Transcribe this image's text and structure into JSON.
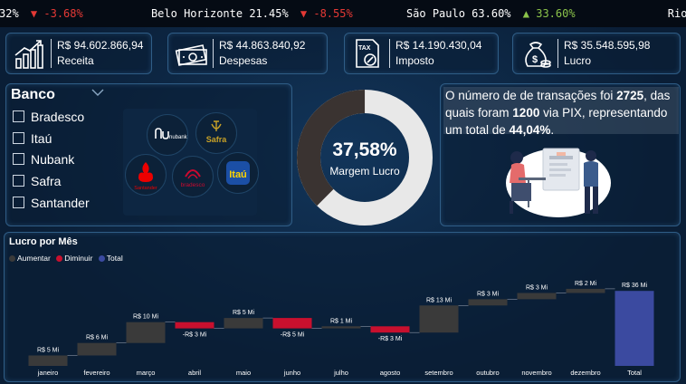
{
  "ticker": [
    {
      "text": "32%",
      "kind": "plain"
    },
    {
      "text": "▼ -3.68%",
      "kind": "down"
    },
    {
      "text": "Belo Horizonte 21.45%",
      "kind": "plain"
    },
    {
      "text": "▼ -8.55%",
      "kind": "down"
    },
    {
      "text": "São Paulo 63.60%",
      "kind": "plain"
    },
    {
      "text": "▲ 33.60%",
      "kind": "up"
    },
    {
      "text": "Rio De Jane",
      "kind": "plain"
    }
  ],
  "kpis": {
    "receita": {
      "value": "R$ 94.602.866,94",
      "label": "Receita",
      "icon": "growth-chart-icon"
    },
    "despesas": {
      "value": "R$ 44.863.840,92",
      "label": "Despesas",
      "icon": "money-bills-icon"
    },
    "imposto": {
      "value": "R$ 14.190.430,04",
      "label": "Imposto",
      "icon": "tax-document-icon"
    },
    "lucro": {
      "value": "R$ 35.548.595,98",
      "label": "Lucro",
      "icon": "money-bag-icon"
    }
  },
  "banco": {
    "title": "Banco",
    "options": [
      "Bradesco",
      "Itaú",
      "Nubank",
      "Safra",
      "Santander"
    ],
    "logos": {
      "nubank": "nubank",
      "safra": "Safra",
      "santander": "Santander",
      "bradesco": "bradesco",
      "itau": "Itaú"
    }
  },
  "margem": {
    "value": "37,58%",
    "label": "Margem Lucro",
    "fraction": 0.3758
  },
  "info": {
    "p1": "O número de de transações foi ",
    "n1": "2725",
    "p2": ", das quais foram ",
    "n2": "1200",
    "p3": " via PIX, representando um total de ",
    "n3": "44,04%",
    "p4": "."
  },
  "colors": {
    "aumentar": "#3a3a3a",
    "diminuir": "#c8102e",
    "total": "#3b4aa0",
    "donut_dark": "#3a3331",
    "donut_light": "#e8e8e8"
  },
  "chart_data": {
    "type": "waterfall",
    "title": "Lucro por Mês",
    "legend": [
      "Aumentar",
      "Diminuir",
      "Total"
    ],
    "unit": "Mi",
    "categories": [
      "janeiro",
      "fevereiro",
      "março",
      "abril",
      "maio",
      "junho",
      "julho",
      "agosto",
      "setembro",
      "outubro",
      "novembro",
      "dezembro",
      "Total"
    ],
    "values": [
      5,
      6,
      10,
      -3,
      5,
      -5,
      1,
      -3,
      13,
      3,
      3,
      2,
      36
    ],
    "labels": [
      "R$ 5 Mi",
      "R$ 6 Mi",
      "R$ 10 Mi",
      "-R$ 3 Mi",
      "R$ 5 Mi",
      "-R$ 5 Mi",
      "R$ 1 Mi",
      "-R$ 3 Mi",
      "R$ 13 Mi",
      "R$ 3 Mi",
      "R$ 3 Mi",
      "R$ 2 Mi",
      "R$ 36 Mi"
    ],
    "kinds": [
      "up",
      "up",
      "up",
      "down",
      "up",
      "down",
      "up",
      "down",
      "up",
      "up",
      "up",
      "up",
      "total"
    ]
  }
}
